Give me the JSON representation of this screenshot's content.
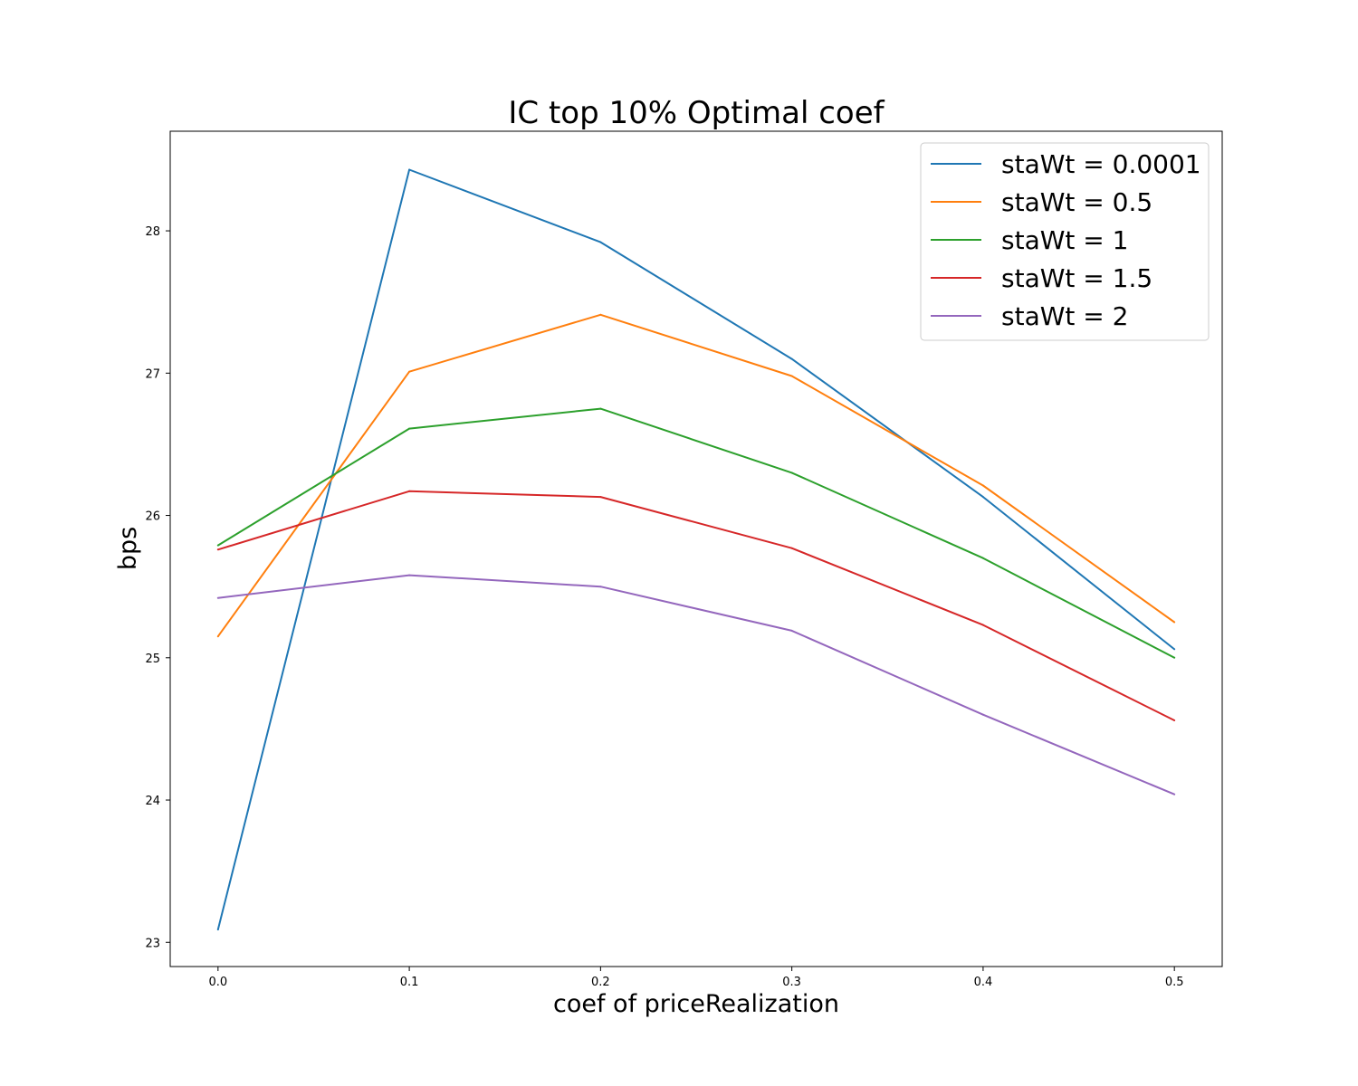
{
  "chart_data": {
    "type": "line",
    "title": "IC top 10% Optimal coef",
    "xlabel": "coef of priceRealization",
    "ylabel": "bps",
    "x": [
      0.0,
      0.1,
      0.2,
      0.3,
      0.4,
      0.5
    ],
    "x_tick_labels": [
      "0.0",
      "0.1",
      "0.2",
      "0.3",
      "0.4",
      "0.5"
    ],
    "y_tick_values": [
      23,
      24,
      25,
      26,
      27,
      28
    ],
    "y_tick_labels": [
      "23",
      "24",
      "25",
      "26",
      "27",
      "28"
    ],
    "xlim": [
      -0.025,
      0.525
    ],
    "ylim": [
      22.83,
      28.7
    ],
    "grid": false,
    "legend_position": "upper right",
    "series": [
      {
        "name": "staWt = 0.0001",
        "color": "#1f77b4",
        "values": [
          23.09,
          28.43,
          27.92,
          27.1,
          26.13,
          25.06
        ]
      },
      {
        "name": "staWt = 0.5",
        "color": "#ff7f0e",
        "values": [
          25.15,
          27.01,
          27.41,
          26.98,
          26.21,
          25.25
        ]
      },
      {
        "name": "staWt = 1",
        "color": "#2ca02c",
        "values": [
          25.79,
          26.61,
          26.75,
          26.3,
          25.7,
          25.0
        ]
      },
      {
        "name": "staWt = 1.5",
        "color": "#d62728",
        "values": [
          25.76,
          26.17,
          26.13,
          25.77,
          25.23,
          24.56
        ]
      },
      {
        "name": "staWt = 2",
        "color": "#9467bd",
        "values": [
          25.42,
          25.58,
          25.5,
          25.19,
          24.6,
          24.04
        ]
      }
    ]
  }
}
